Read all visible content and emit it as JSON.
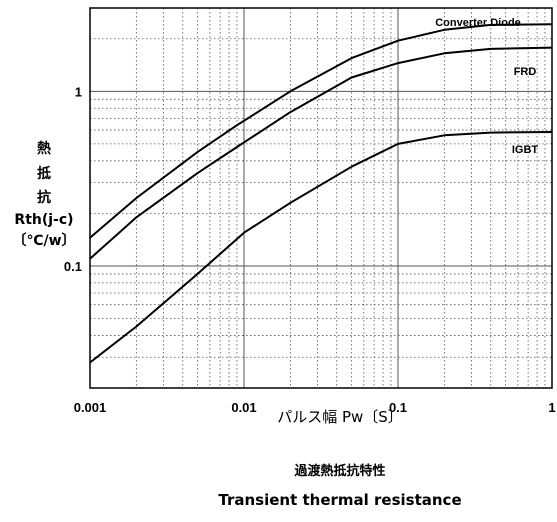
{
  "chart_data": {
    "type": "line",
    "xscale": "log",
    "yscale": "log",
    "xlim": [
      0.001,
      1
    ],
    "ylim": [
      0.02,
      3
    ],
    "grid": true,
    "xticks": [
      "0.001",
      "0.01",
      "0.1",
      "1"
    ],
    "yticks": [
      "0.1",
      "1"
    ],
    "ylabel_lines": [
      "熱",
      "抵",
      "抗",
      "Rth(j-c)",
      "〔℃/w〕"
    ],
    "xlabel": "パルス幅 Pw〔S〕",
    "caption_ja": "過渡熱抵抗特性",
    "caption_en": "Transient thermal resistance",
    "series": [
      {
        "name": "Converter Diode",
        "x": [
          0.001,
          0.002,
          0.005,
          0.009,
          0.02,
          0.05,
          0.1,
          0.2,
          0.4,
          1
        ],
        "y": [
          0.145,
          0.245,
          0.45,
          0.64,
          1.0,
          1.55,
          1.95,
          2.25,
          2.4,
          2.42
        ]
      },
      {
        "name": "FRD",
        "x": [
          0.001,
          0.002,
          0.005,
          0.009,
          0.02,
          0.05,
          0.1,
          0.2,
          0.4,
          1
        ],
        "y": [
          0.11,
          0.19,
          0.34,
          0.48,
          0.76,
          1.2,
          1.45,
          1.65,
          1.75,
          1.78
        ]
      },
      {
        "name": "IGBT",
        "x": [
          0.001,
          0.002,
          0.005,
          0.01,
          0.02,
          0.05,
          0.1,
          0.2,
          0.4,
          1
        ],
        "y": [
          0.028,
          0.045,
          0.09,
          0.155,
          0.23,
          0.37,
          0.5,
          0.56,
          0.58,
          0.585
        ]
      }
    ]
  }
}
